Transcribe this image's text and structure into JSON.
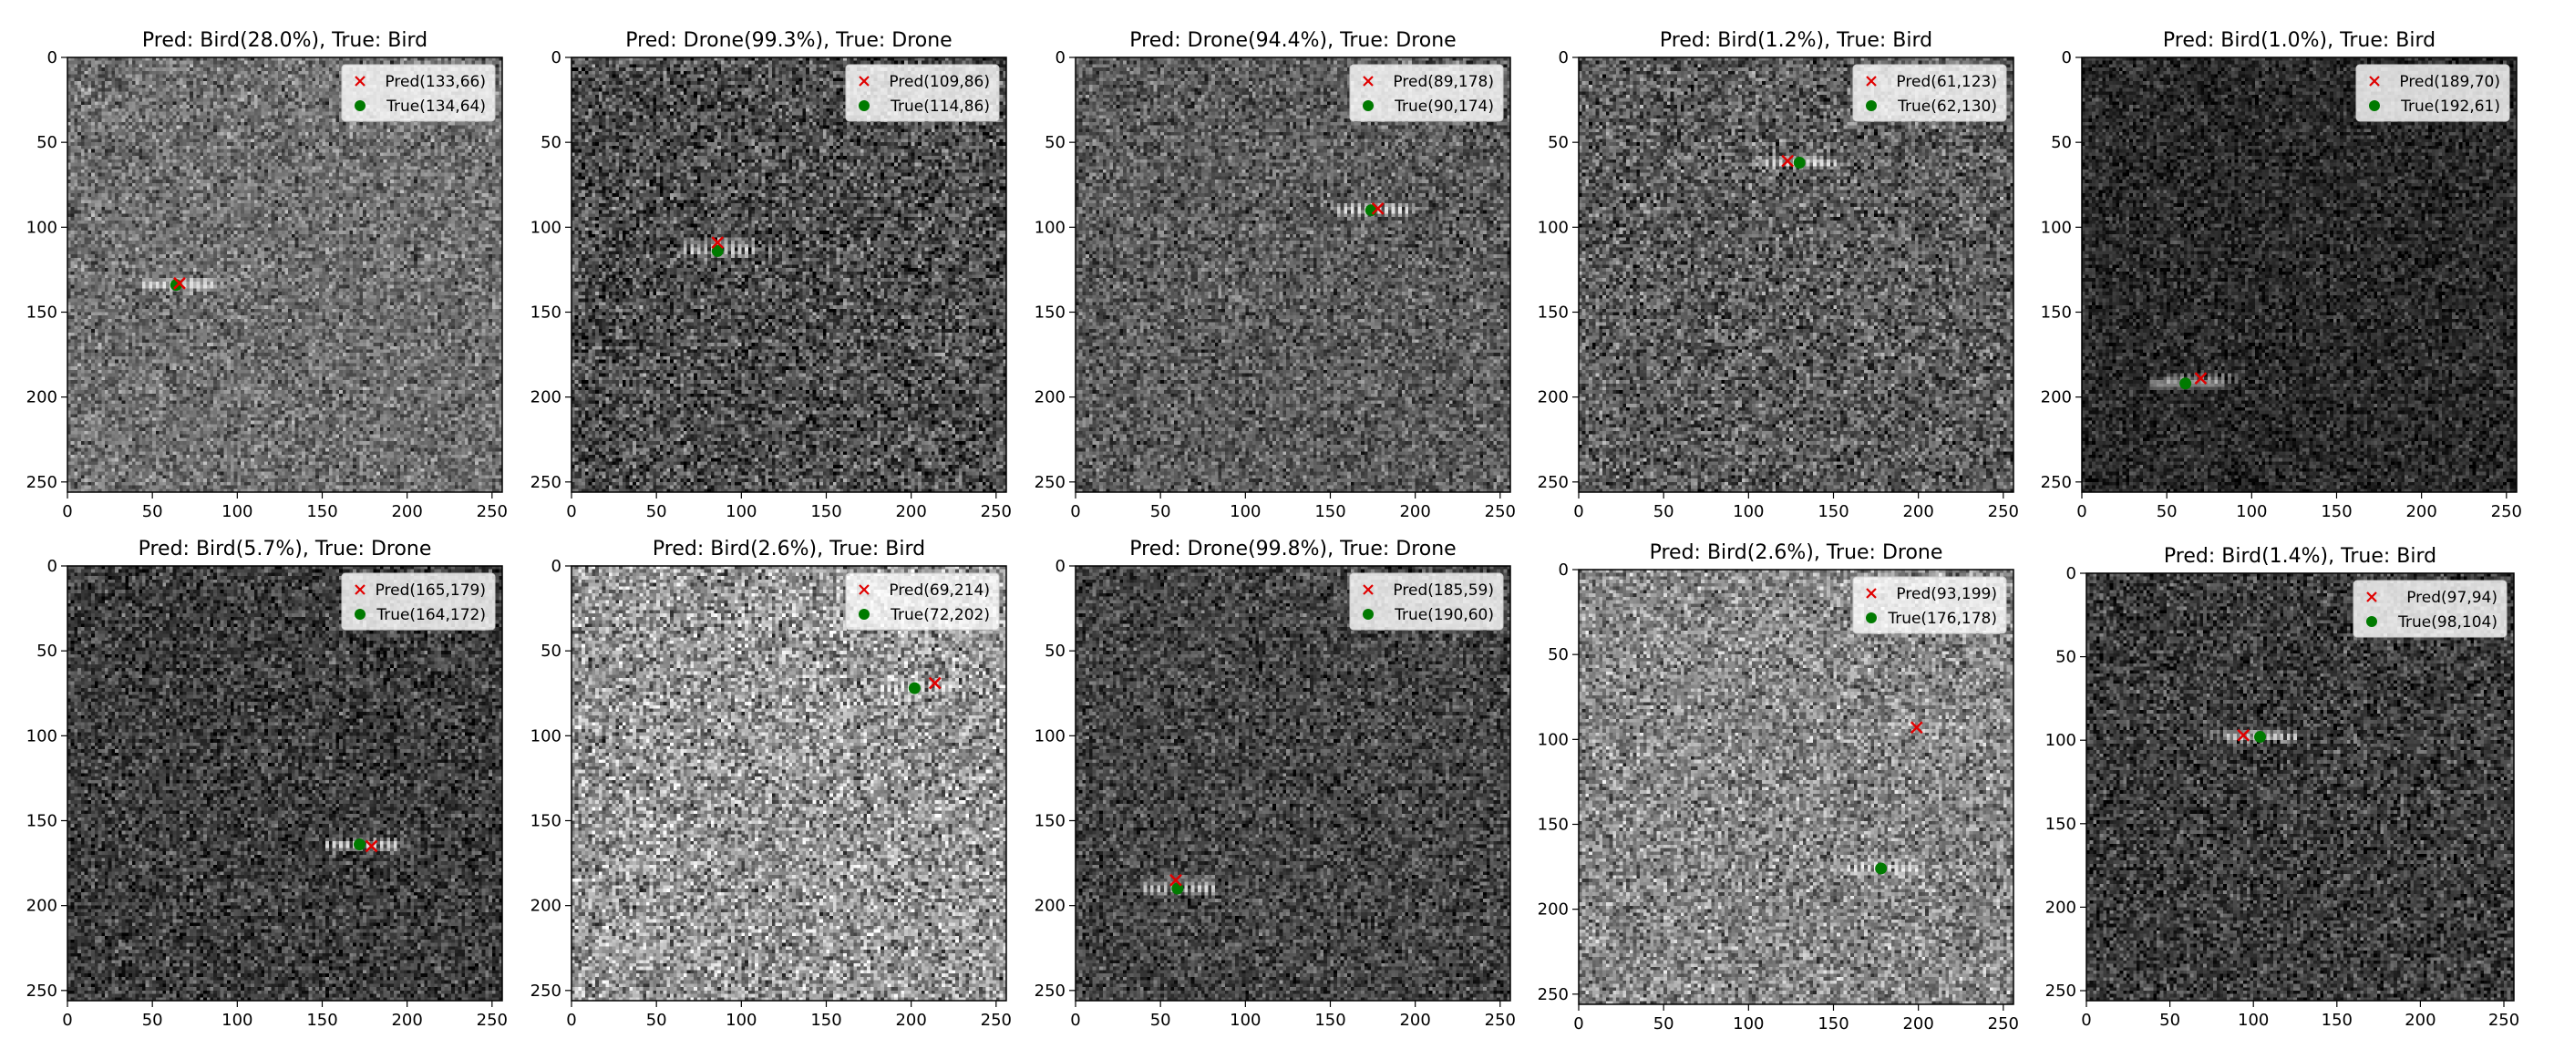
{
  "colors": {
    "pred_marker": "#e00000",
    "true_marker": "#007a00",
    "legend_bg": "#ffffff"
  },
  "legend_labels": {
    "pred": "Pred",
    "true": "True"
  },
  "chart_data": [
    {
      "type": "scatter",
      "title": "Pred: Bird(28.0%), True: Bird",
      "background": "noise",
      "mean_gray": 112,
      "contrast": 40,
      "xlim": [
        0,
        256
      ],
      "ylim": [
        256,
        0
      ],
      "xticks": [
        0,
        50,
        100,
        150,
        200,
        250
      ],
      "yticks": [
        0,
        50,
        100,
        150,
        200,
        250
      ],
      "pred_point": {
        "label": "Pred(133,66)",
        "row": 133,
        "col": 66
      },
      "true_point": {
        "label": "True(134,64)",
        "row": 134,
        "col": 64
      }
    },
    {
      "type": "scatter",
      "title": "Pred: Drone(99.3%), True: Drone",
      "background": "noise",
      "mean_gray": 78,
      "contrast": 50,
      "xlim": [
        0,
        256
      ],
      "ylim": [
        256,
        0
      ],
      "xticks": [
        0,
        50,
        100,
        150,
        200,
        250
      ],
      "yticks": [
        0,
        50,
        100,
        150,
        200,
        250
      ],
      "pred_point": {
        "label": "Pred(109,86)",
        "row": 109,
        "col": 86
      },
      "true_point": {
        "label": "True(114,86)",
        "row": 114,
        "col": 86
      }
    },
    {
      "type": "scatter",
      "title": "Pred: Drone(94.4%), True: Drone",
      "background": "noise",
      "mean_gray": 92,
      "contrast": 40,
      "xlim": [
        0,
        256
      ],
      "ylim": [
        256,
        0
      ],
      "xticks": [
        0,
        50,
        100,
        150,
        200,
        250
      ],
      "yticks": [
        0,
        50,
        100,
        150,
        200,
        250
      ],
      "pred_point": {
        "label": "Pred(89,178)",
        "row": 89,
        "col": 178
      },
      "true_point": {
        "label": "True(90,174)",
        "row": 90,
        "col": 174
      }
    },
    {
      "type": "scatter",
      "title": "Pred: Bird(1.2%), True: Bird",
      "background": "noise",
      "mean_gray": 92,
      "contrast": 48,
      "xlim": [
        0,
        256
      ],
      "ylim": [
        256,
        0
      ],
      "xticks": [
        0,
        50,
        100,
        150,
        200,
        250
      ],
      "yticks": [
        0,
        50,
        100,
        150,
        200,
        250
      ],
      "pred_point": {
        "label": "Pred(61,123)",
        "row": 61,
        "col": 123
      },
      "true_point": {
        "label": "True(62,130)",
        "row": 62,
        "col": 130
      }
    },
    {
      "type": "scatter",
      "title": "Pred: Bird(1.0%), True: Bird",
      "background": "noise",
      "mean_gray": 42,
      "contrast": 30,
      "xlim": [
        0,
        256
      ],
      "ylim": [
        256,
        0
      ],
      "xticks": [
        0,
        50,
        100,
        150,
        200,
        250
      ],
      "yticks": [
        0,
        50,
        100,
        150,
        200,
        250
      ],
      "pred_point": {
        "label": "Pred(189,70)",
        "row": 189,
        "col": 70
      },
      "true_point": {
        "label": "True(192,61)",
        "row": 192,
        "col": 61
      }
    },
    {
      "type": "scatter",
      "title": "Pred: Bird(5.7%), True: Drone",
      "background": "noise",
      "mean_gray": 62,
      "contrast": 40,
      "xlim": [
        0,
        256
      ],
      "ylim": [
        256,
        0
      ],
      "xticks": [
        0,
        50,
        100,
        150,
        200,
        250
      ],
      "yticks": [
        0,
        50,
        100,
        150,
        200,
        250
      ],
      "pred_point": {
        "label": "Pred(165,179)",
        "row": 165,
        "col": 179
      },
      "true_point": {
        "label": "True(164,172)",
        "row": 164,
        "col": 172
      }
    },
    {
      "type": "scatter",
      "title": "Pred: Bird(2.6%), True: Bird",
      "background": "noise",
      "mean_gray": 150,
      "contrast": 60,
      "xlim": [
        0,
        256
      ],
      "ylim": [
        256,
        0
      ],
      "xticks": [
        0,
        50,
        100,
        150,
        200,
        250
      ],
      "yticks": [
        0,
        50,
        100,
        150,
        200,
        250
      ],
      "pred_point": {
        "label": "Pred(69,214)",
        "row": 69,
        "col": 214
      },
      "true_point": {
        "label": "True(72,202)",
        "row": 72,
        "col": 202
      }
    },
    {
      "type": "scatter",
      "title": "Pred: Drone(99.8%), True: Drone",
      "background": "noise",
      "mean_gray": 70,
      "contrast": 38,
      "xlim": [
        0,
        256
      ],
      "ylim": [
        256,
        0
      ],
      "xticks": [
        0,
        50,
        100,
        150,
        200,
        250
      ],
      "yticks": [
        0,
        50,
        100,
        150,
        200,
        250
      ],
      "pred_point": {
        "label": "Pred(185,59)",
        "row": 185,
        "col": 59
      },
      "true_point": {
        "label": "True(190,60)",
        "row": 190,
        "col": 60
      }
    },
    {
      "type": "scatter",
      "title": "Pred: Bird(2.6%), True: Drone",
      "background": "noise",
      "mean_gray": 135,
      "contrast": 50,
      "xlim": [
        0,
        256
      ],
      "ylim": [
        256,
        0
      ],
      "xticks": [
        0,
        50,
        100,
        150,
        200,
        250
      ],
      "yticks": [
        0,
        50,
        100,
        150,
        200,
        250
      ],
      "pred_point": {
        "label": "Pred(93,199)",
        "row": 93,
        "col": 199
      },
      "true_point": {
        "label": "True(176,178)",
        "row": 176,
        "col": 178
      }
    },
    {
      "type": "scatter",
      "title": "Pred: Bird(1.4%), True: Bird",
      "background": "noise",
      "mean_gray": 60,
      "contrast": 40,
      "xlim": [
        0,
        256
      ],
      "ylim": [
        256,
        0
      ],
      "xticks": [
        0,
        50,
        100,
        150,
        200,
        250
      ],
      "yticks": [
        0,
        50,
        100,
        150,
        200,
        250
      ],
      "pred_point": {
        "label": "Pred(97,94)",
        "row": 97,
        "col": 94
      },
      "true_point": {
        "label": "True(98,104)",
        "row": 98,
        "col": 104
      }
    }
  ]
}
